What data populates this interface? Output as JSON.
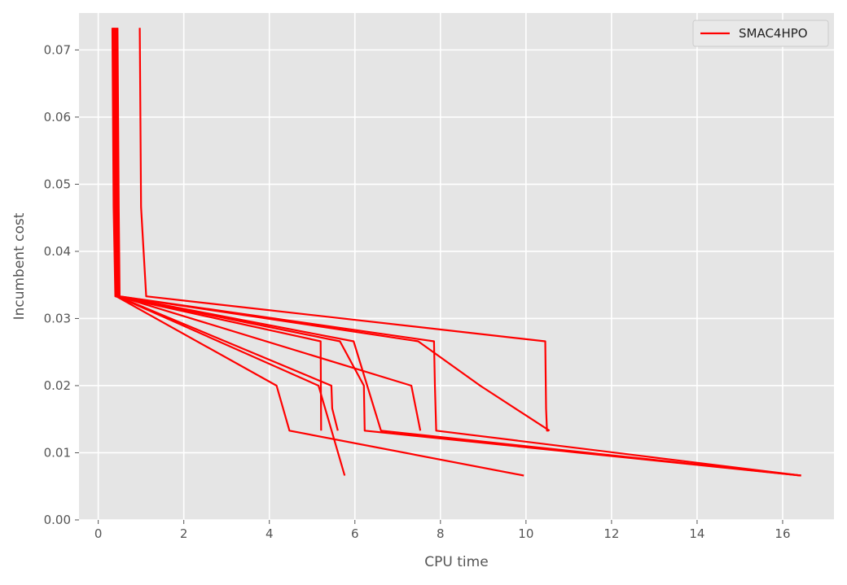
{
  "chart_data": {
    "type": "line",
    "title": "",
    "xlabel": "CPU time",
    "ylabel": "Incumbent cost",
    "xlim": [
      -0.45,
      17.2
    ],
    "ylim": [
      0.0,
      0.0755
    ],
    "xticks": [
      0,
      2,
      4,
      6,
      8,
      10,
      12,
      14,
      16
    ],
    "yticks": [
      0.0,
      0.01,
      0.02,
      0.03,
      0.04,
      0.05,
      0.06,
      0.07
    ],
    "xtick_labels": [
      "0",
      "2",
      "4",
      "6",
      "8",
      "10",
      "12",
      "14",
      "16"
    ],
    "ytick_labels": [
      "0.00",
      "0.01",
      "0.02",
      "0.03",
      "0.04",
      "0.05",
      "0.06",
      "0.07"
    ],
    "grid": true,
    "legend_position": "top-right",
    "colors": {
      "line": "#ff0000",
      "plot_bg": "#e5e5e5",
      "grid": "#ffffff",
      "text": "#555555"
    },
    "series": [
      {
        "name": "SMAC4HPO",
        "runs": [
          {
            "x": [
              0.33,
              0.36,
              0.4,
              5.2,
              5.21
            ],
            "y": [
              0.0733,
              0.0466,
              0.0333,
              0.0266,
              0.0133
            ]
          },
          {
            "x": [
              0.35,
              0.38,
              0.42,
              4.17,
              4.47,
              9.95
            ],
            "y": [
              0.0733,
              0.0466,
              0.0333,
              0.02,
              0.0133,
              0.0066
            ]
          },
          {
            "x": [
              0.37,
              0.4,
              0.44,
              5.15,
              5.76
            ],
            "y": [
              0.0733,
              0.0466,
              0.0333,
              0.02,
              0.0066
            ]
          },
          {
            "x": [
              0.38,
              0.41,
              0.45,
              5.45,
              5.47,
              5.6
            ],
            "y": [
              0.0733,
              0.0466,
              0.0333,
              0.02,
              0.0166,
              0.0133
            ]
          },
          {
            "x": [
              0.36,
              0.39,
              0.43,
              5.65,
              6.21,
              6.23,
              16.43
            ],
            "y": [
              0.0733,
              0.0466,
              0.0333,
              0.0266,
              0.02,
              0.0133,
              0.0066
            ]
          },
          {
            "x": [
              0.4,
              0.43,
              0.47,
              5.97,
              6.61,
              16.43
            ],
            "y": [
              0.0733,
              0.0466,
              0.0333,
              0.0266,
              0.0133,
              0.0066
            ]
          },
          {
            "x": [
              0.42,
              0.45,
              0.48,
              7.32,
              7.53
            ],
            "y": [
              0.0733,
              0.0466,
              0.0333,
              0.02,
              0.0133
            ]
          },
          {
            "x": [
              0.44,
              0.47,
              0.49,
              7.48,
              8.93,
              10.55
            ],
            "y": [
              0.0733,
              0.0466,
              0.0333,
              0.0266,
              0.02,
              0.0133
            ]
          },
          {
            "x": [
              0.45,
              0.48,
              0.5,
              7.85,
              7.87,
              7.9,
              16.43
            ],
            "y": [
              0.0733,
              0.0466,
              0.0333,
              0.0266,
              0.02,
              0.0133,
              0.0066
            ]
          },
          {
            "x": [
              0.97,
              1.0,
              1.12,
              10.45,
              10.47,
              10.49,
              10.53
            ],
            "y": [
              0.0733,
              0.0466,
              0.0333,
              0.0266,
              0.0166,
              0.0133,
              0.0133
            ]
          }
        ]
      }
    ]
  }
}
